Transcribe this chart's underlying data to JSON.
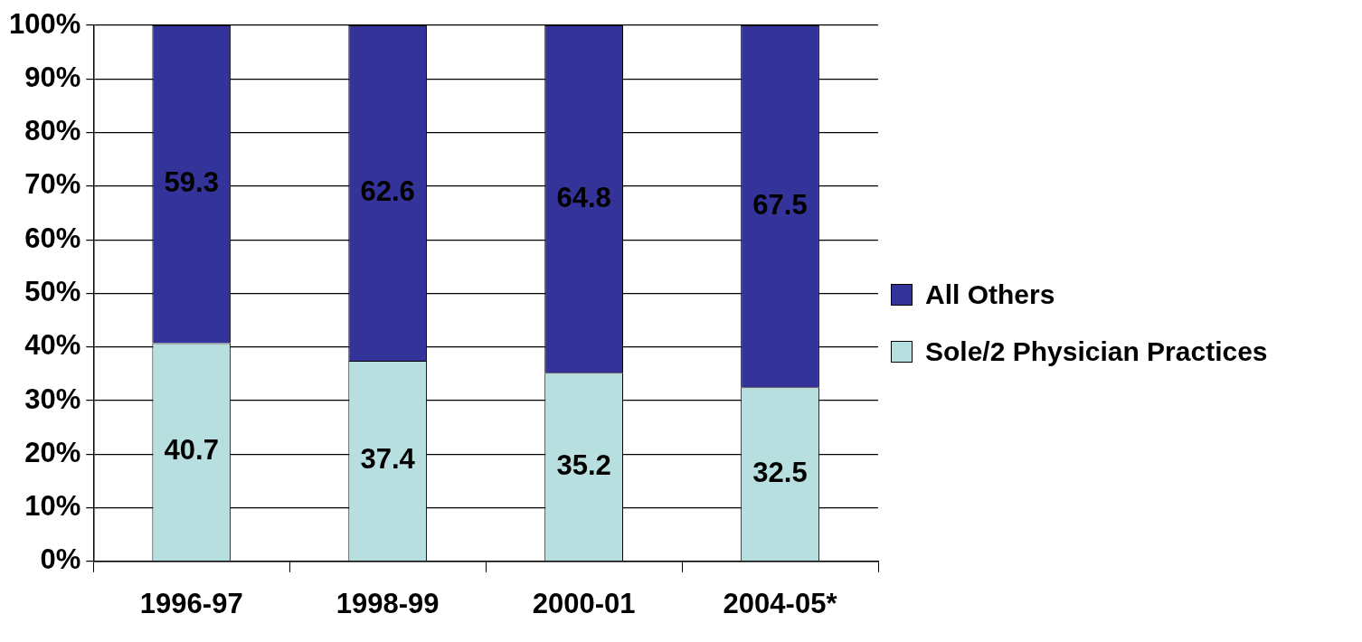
{
  "chart_data": {
    "type": "bar",
    "stacked": true,
    "categories": [
      "1996-97",
      "1998-99",
      "2000-01",
      "2004-05*"
    ],
    "series": [
      {
        "name": "Sole/2 Physician Practices",
        "color": "#b8dfe0",
        "values": [
          40.7,
          37.4,
          35.2,
          32.5
        ]
      },
      {
        "name": "All Others",
        "color": "#333399",
        "values": [
          59.3,
          62.6,
          64.8,
          67.5
        ]
      }
    ],
    "ylim": [
      0,
      100
    ],
    "yticks": [
      {
        "value": 0,
        "label": "0%"
      },
      {
        "value": 10,
        "label": "10%"
      },
      {
        "value": 20,
        "label": "20%"
      },
      {
        "value": 30,
        "label": "30%"
      },
      {
        "value": 40,
        "label": "40%"
      },
      {
        "value": 50,
        "label": "50%"
      },
      {
        "value": 60,
        "label": "60%"
      },
      {
        "value": 70,
        "label": "70%"
      },
      {
        "value": 80,
        "label": "80%"
      },
      {
        "value": 90,
        "label": "90%"
      },
      {
        "value": 100,
        "label": "100%"
      }
    ],
    "grid": "y",
    "legend": "right",
    "data_labels": true
  }
}
